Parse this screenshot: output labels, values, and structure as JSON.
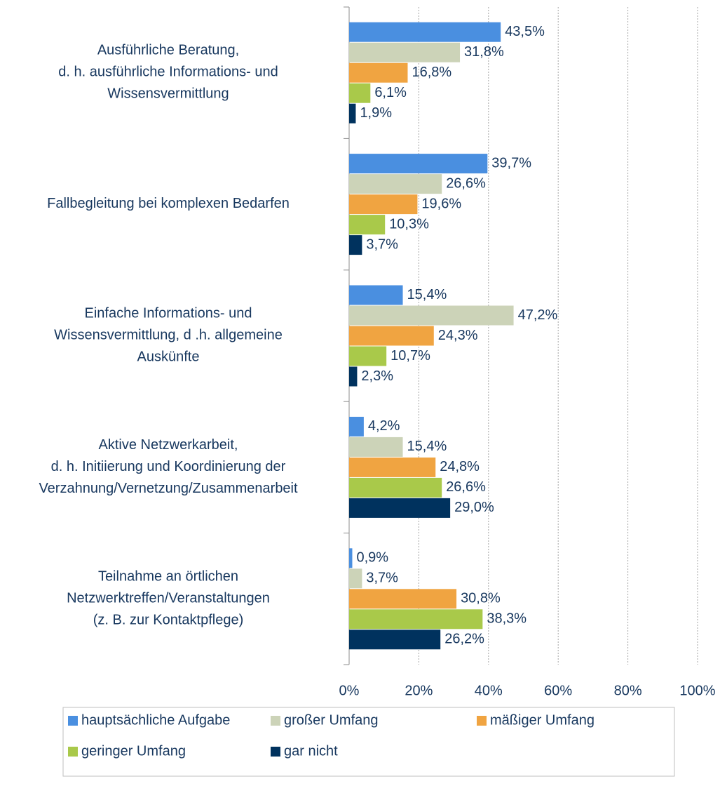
{
  "chart_data": {
    "type": "bar",
    "orientation": "horizontal",
    "categories": [
      "Ausführliche Beratung,\nd. h. ausführliche Informations- und\nWissensvermittlung",
      "Fallbegleitung bei komplexen Bedarfen",
      "Einfache Informations- und\nWissensvermittlung, d .h. allgemeine\nAuskünfte",
      "Aktive Netzwerkarbeit,\nd. h. Initiierung und Koordinierung der\nVerzahnung/Vernetzung/Zusammenarbeit",
      "Teilnahme an örtlichen\nNetzwerktreffen/Veranstaltungen\n(z. B. zur Kontaktpflege)"
    ],
    "series": [
      {
        "name": "hauptsächliche Aufgabe",
        "color": "#4a8fe0",
        "values": [
          43.5,
          39.7,
          15.4,
          4.2,
          0.9
        ],
        "value_labels": [
          "43,5%",
          "39,7%",
          "15,4%",
          "4,2%",
          "0,9%"
        ]
      },
      {
        "name": "großer Umfang",
        "color": "#ccd3b8",
        "values": [
          31.8,
          26.6,
          47.2,
          15.4,
          3.7
        ],
        "value_labels": [
          "31,8%",
          "26,6%",
          "47,2%",
          "15,4%",
          "3,7%"
        ]
      },
      {
        "name": "mäßiger Umfang",
        "color": "#f0a441",
        "values": [
          16.8,
          19.6,
          24.3,
          24.8,
          30.8
        ],
        "value_labels": [
          "16,8%",
          "19,6%",
          "24,3%",
          "24,8%",
          "30,8%"
        ]
      },
      {
        "name": "geringer Umfang",
        "color": "#a9c94a",
        "values": [
          6.1,
          10.3,
          10.7,
          26.6,
          38.3
        ],
        "value_labels": [
          "6,1%",
          "10,3%",
          "10,7%",
          "26,6%",
          "38,3%"
        ]
      },
      {
        "name": "gar nicht",
        "color": "#00325e",
        "values": [
          1.9,
          3.7,
          2.3,
          29.0,
          26.2
        ],
        "value_labels": [
          "1,9%",
          "3,7%",
          "2,3%",
          "29,0%",
          "26,2%"
        ]
      }
    ],
    "xlim": [
      0,
      100
    ],
    "xticks": [
      {
        "value": 0,
        "label": "0%"
      },
      {
        "value": 20,
        "label": "20%"
      },
      {
        "value": 40,
        "label": "40%"
      },
      {
        "value": 60,
        "label": "60%"
      },
      {
        "value": 80,
        "label": "80%"
      },
      {
        "value": 100,
        "label": "100%"
      }
    ],
    "grid": true,
    "legend": "bottom"
  }
}
